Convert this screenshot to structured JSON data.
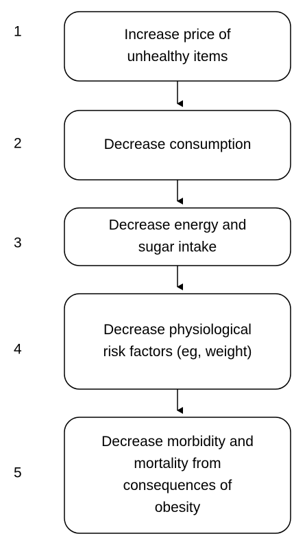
{
  "nodes": [
    {
      "number": "1",
      "lines": [
        "Increase price of",
        "unhealthy items"
      ]
    },
    {
      "number": "2",
      "lines": [
        "Decrease consumption"
      ]
    },
    {
      "number": "3",
      "lines": [
        "Decrease energy and",
        "sugar intake"
      ]
    },
    {
      "number": "4",
      "lines": [
        "Decrease physiological",
        "risk factors (eg, weight)"
      ]
    },
    {
      "number": "5",
      "lines": [
        "Decrease morbidity and",
        "mortality from",
        "consequences of",
        "obesity"
      ]
    }
  ]
}
